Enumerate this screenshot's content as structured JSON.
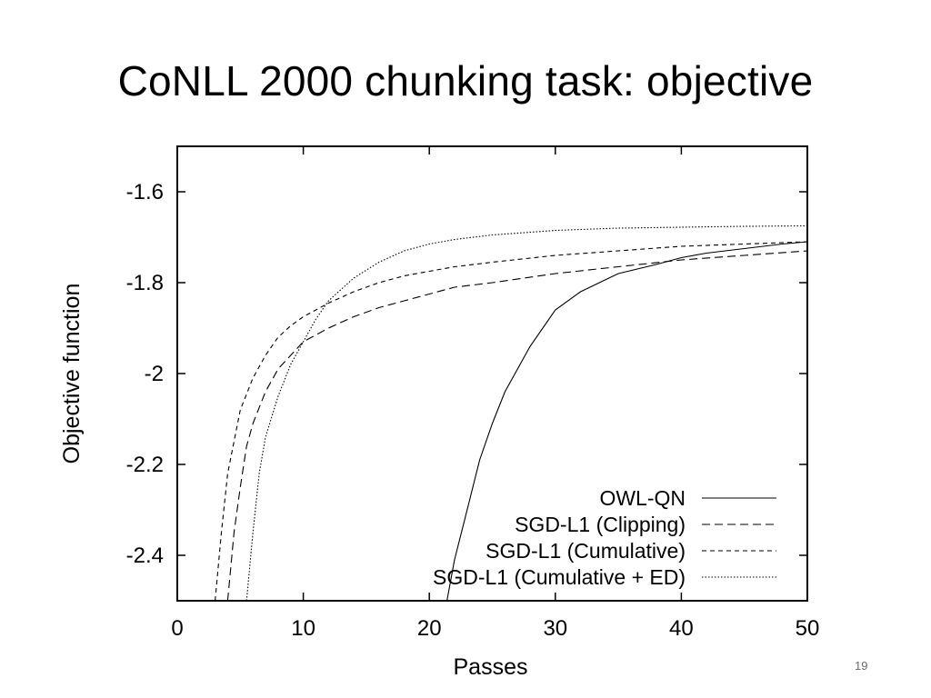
{
  "slide": {
    "title": "CoNLL 2000 chunking task: objective",
    "page_number": "19"
  },
  "chart_data": {
    "type": "line",
    "title": "",
    "xlabel": "Passes",
    "ylabel": "Objective function",
    "xlim": [
      0,
      50
    ],
    "ylim": [
      -2.5,
      -1.5
    ],
    "xticks": [
      0,
      10,
      20,
      30,
      40,
      50
    ],
    "yticks": [
      -1.6,
      -1.8,
      -2,
      -2.2,
      -2.4
    ],
    "ytick_labels": [
      "-1.6",
      "-1.8",
      "-2",
      "-2.2",
      "-2.4"
    ],
    "xtick_labels": [
      "0",
      "10",
      "20",
      "30",
      "40",
      "50"
    ],
    "grid": false,
    "legend_position": "bottom-right",
    "series": [
      {
        "name": "OWL-QN",
        "style": "solid",
        "x": [
          21.4,
          22,
          23,
          24,
          25,
          26,
          28,
          30,
          32,
          35,
          38,
          40,
          42,
          45,
          48,
          50
        ],
        "y": [
          -2.5,
          -2.41,
          -2.3,
          -2.19,
          -2.11,
          -2.04,
          -1.94,
          -1.86,
          -1.82,
          -1.78,
          -1.76,
          -1.745,
          -1.735,
          -1.725,
          -1.715,
          -1.71
        ]
      },
      {
        "name": "SGD-L1 (Clipping)",
        "style": "dashed",
        "x": [
          4,
          4.5,
          5,
          5.5,
          6,
          7,
          8,
          9,
          10,
          12,
          14,
          16,
          18,
          20,
          22,
          25,
          30,
          35,
          40,
          45,
          50
        ],
        "y": [
          -2.5,
          -2.35,
          -2.25,
          -2.16,
          -2.11,
          -2.04,
          -1.99,
          -1.96,
          -1.93,
          -1.9,
          -1.875,
          -1.855,
          -1.84,
          -1.825,
          -1.81,
          -1.8,
          -1.78,
          -1.765,
          -1.75,
          -1.74,
          -1.73
        ]
      },
      {
        "name": "SGD-L1 (Cumulative)",
        "style": "short-dashed",
        "x": [
          3,
          3.5,
          4,
          5,
          6,
          7,
          8,
          9,
          10,
          12,
          14,
          16,
          18,
          20,
          22,
          25,
          30,
          35,
          40,
          45,
          50
        ],
        "y": [
          -2.5,
          -2.35,
          -2.22,
          -2.08,
          -2.01,
          -1.96,
          -1.92,
          -1.895,
          -1.875,
          -1.845,
          -1.82,
          -1.8,
          -1.785,
          -1.775,
          -1.765,
          -1.755,
          -1.74,
          -1.73,
          -1.72,
          -1.715,
          -1.71
        ]
      },
      {
        "name": "SGD-L1 (Cumulative + ED)",
        "style": "dotted",
        "x": [
          5.5,
          6,
          6.5,
          7,
          8,
          9,
          10,
          11,
          12,
          14,
          16,
          18,
          20,
          22,
          25,
          30,
          35,
          40,
          45,
          50
        ],
        "y": [
          -2.5,
          -2.35,
          -2.22,
          -2.14,
          -2.05,
          -1.98,
          -1.93,
          -1.88,
          -1.84,
          -1.79,
          -1.755,
          -1.73,
          -1.715,
          -1.705,
          -1.695,
          -1.685,
          -1.68,
          -1.678,
          -1.676,
          -1.675
        ]
      }
    ]
  }
}
